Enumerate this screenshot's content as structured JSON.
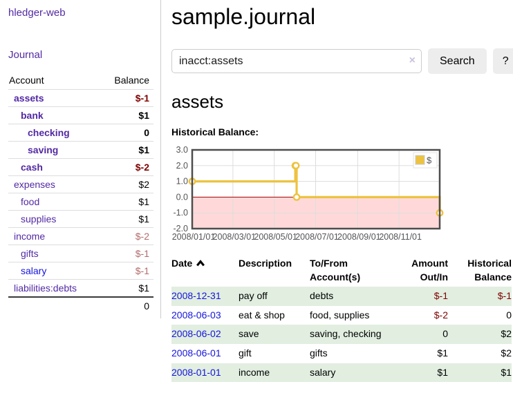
{
  "colors": {
    "accent_purple": "#5229a3",
    "link_blue": "#1414dd",
    "negative": "#7d0000",
    "negative_muted": "#b36b6b",
    "row_green": "#e1eee0",
    "button_bg": "#ededed",
    "chart_line": "#edc240",
    "chart_grid": "#dddddd",
    "chart_border": "#4d4d4d",
    "chart_axis_text": "#545454"
  },
  "sidebar": {
    "brand": "hledger-web",
    "journal_label": "Journal",
    "accounts_table": {
      "headers": [
        "Account",
        "Balance"
      ],
      "rows": [
        {
          "name": "assets",
          "balance": "$-1",
          "depth": 1,
          "bold": true,
          "balance_style": "negative"
        },
        {
          "name": "bank",
          "balance": "$1",
          "depth": 2,
          "bold": true,
          "balance_style": "normal"
        },
        {
          "name": "checking",
          "balance": "0",
          "depth": 3,
          "bold": true,
          "balance_style": "normal"
        },
        {
          "name": "saving",
          "balance": "$1",
          "depth": 3,
          "bold": true,
          "balance_style": "normal"
        },
        {
          "name": "cash",
          "balance": "$-2",
          "depth": 2,
          "bold": true,
          "balance_style": "negative"
        },
        {
          "name": "expenses",
          "balance": "$2",
          "depth": 1,
          "bold": false,
          "balance_style": "normal"
        },
        {
          "name": "food",
          "balance": "$1",
          "depth": 2,
          "bold": false,
          "balance_style": "normal"
        },
        {
          "name": "supplies",
          "balance": "$1",
          "depth": 2,
          "bold": false,
          "balance_style": "normal"
        },
        {
          "name": "income",
          "balance": "$-2",
          "depth": 1,
          "bold": false,
          "balance_style": "negative_muted"
        },
        {
          "name": "gifts",
          "balance": "$-1",
          "depth": 2,
          "bold": false,
          "balance_style": "negative_muted"
        },
        {
          "name": "salary",
          "balance": "$-1",
          "depth": 2,
          "bold": false,
          "balance_style": "negative_muted",
          "link_style": "unvisited"
        },
        {
          "name": "liabilities:debts",
          "balance": "$1",
          "depth": 1,
          "bold": false,
          "balance_style": "normal"
        }
      ],
      "total": "0"
    }
  },
  "header": {
    "title": "sample.journal"
  },
  "search": {
    "value": "inacct:assets",
    "clear_icon": "×",
    "button_label": "Search",
    "help_label": "?"
  },
  "account_page": {
    "title": "assets",
    "chart_label": "Historical Balance:"
  },
  "chart_data": {
    "type": "line",
    "title": "Historical Balance",
    "step": true,
    "series": [
      {
        "name": "$",
        "color": "#edc240",
        "points": [
          [
            "2008-01-01",
            1
          ],
          [
            "2008-06-01",
            2
          ],
          [
            "2008-06-02",
            2
          ],
          [
            "2008-06-03",
            0
          ],
          [
            "2008-12-31",
            -1
          ]
        ]
      }
    ],
    "x_range": [
      "2008-01-01",
      "2008-12-31"
    ],
    "x_ticks": [
      {
        "date": "2008-01-01",
        "label": "2008/01/01"
      },
      {
        "date": "2008-03-01",
        "label": "2008/03/01"
      },
      {
        "date": "2008-05-01",
        "label": "2008/05/01"
      },
      {
        "date": "2008-07-01",
        "label": "2008/07/01"
      },
      {
        "date": "2008-09-01",
        "label": "2008/09/01"
      },
      {
        "date": "2008-11-01",
        "label": "2008/11/01"
      }
    ],
    "y_ticks": [
      {
        "value": 3,
        "label": "3.0"
      },
      {
        "value": 2,
        "label": "2.0"
      },
      {
        "value": 1,
        "label": "1.0"
      },
      {
        "value": 0,
        "label": "0.0"
      },
      {
        "value": -1,
        "label": "-1.0"
      },
      {
        "value": -2,
        "label": "-2.0"
      }
    ],
    "ylim": [
      -2,
      3
    ],
    "grid": true,
    "legend_position": "top-right",
    "legend_entries": [
      "$"
    ],
    "negative_region_color": "#ffd9d9",
    "zero_line_color": "#aa0000"
  },
  "register_table": {
    "columns": [
      {
        "line1": "Date",
        "line2": "",
        "align": "left",
        "sort": "asc"
      },
      {
        "line1": "Description",
        "line2": "",
        "align": "left"
      },
      {
        "line1": "To/From",
        "line2": "Account(s)",
        "align": "left"
      },
      {
        "line1": "Amount",
        "line2": "Out/In",
        "align": "right"
      },
      {
        "line1": "Historical",
        "line2": "Balance",
        "align": "right"
      }
    ],
    "rows": [
      {
        "date": "2008-12-31",
        "description": "pay off",
        "accounts": "debts",
        "amount": "$-1",
        "balance": "$-1",
        "amount_negative": true,
        "balance_negative": true,
        "shaded": true
      },
      {
        "date": "2008-06-03",
        "description": "eat & shop",
        "accounts": "food, supplies",
        "amount": "$-2",
        "balance": "0",
        "amount_negative": true,
        "balance_negative": false,
        "shaded": false
      },
      {
        "date": "2008-06-02",
        "description": "save",
        "accounts": "saving, checking",
        "amount": "0",
        "balance": "$2",
        "amount_negative": false,
        "balance_negative": false,
        "shaded": true
      },
      {
        "date": "2008-06-01",
        "description": "gift",
        "accounts": "gifts",
        "amount": "$1",
        "balance": "$2",
        "amount_negative": false,
        "balance_negative": false,
        "shaded": false
      },
      {
        "date": "2008-01-01",
        "description": "income",
        "accounts": "salary",
        "amount": "$1",
        "balance": "$1",
        "amount_negative": false,
        "balance_negative": false,
        "shaded": true
      }
    ]
  }
}
